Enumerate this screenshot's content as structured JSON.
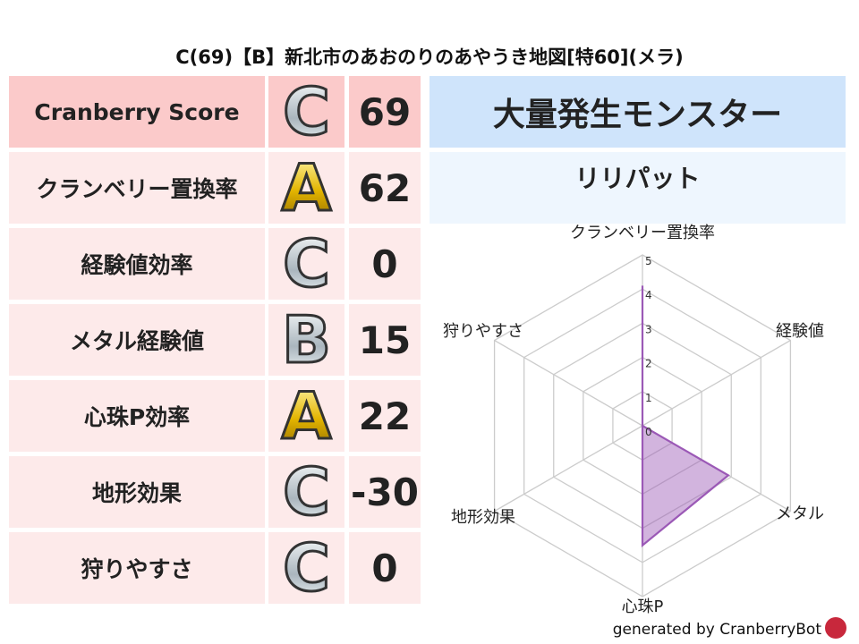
{
  "title": "C(69)【B】新北市のあおのりのあやうき地図[特60](メラ)",
  "rows": [
    {
      "label": "Cranberry Score",
      "grade": "C",
      "score": "69"
    },
    {
      "label": "クランベリー置換率",
      "grade": "A",
      "score": "62"
    },
    {
      "label": "経験値効率",
      "grade": "C",
      "score": "0"
    },
    {
      "label": "メタル経験値",
      "grade": "B",
      "score": "15"
    },
    {
      "label": "心珠P効率",
      "grade": "A",
      "score": "22"
    },
    {
      "label": "地形効果",
      "grade": "C",
      "score": "-30"
    },
    {
      "label": "狩りやすさ",
      "grade": "C",
      "score": "0"
    }
  ],
  "right": {
    "header": "大量発生モンスター",
    "monster": "リリパット"
  },
  "chart_data": {
    "type": "radar",
    "axes": [
      "クランベリー置換率",
      "経験値",
      "メタル",
      "心珠P",
      "地形効果",
      "狩りやすさ"
    ],
    "values": [
      4.1,
      0,
      2.9,
      3.5,
      0,
      0
    ],
    "rlim": [
      0,
      5
    ],
    "ticks": [
      "0",
      "1",
      "2",
      "3",
      "4",
      "5"
    ],
    "color": "#9b59b6"
  },
  "footer": "generated by CranberryBot"
}
